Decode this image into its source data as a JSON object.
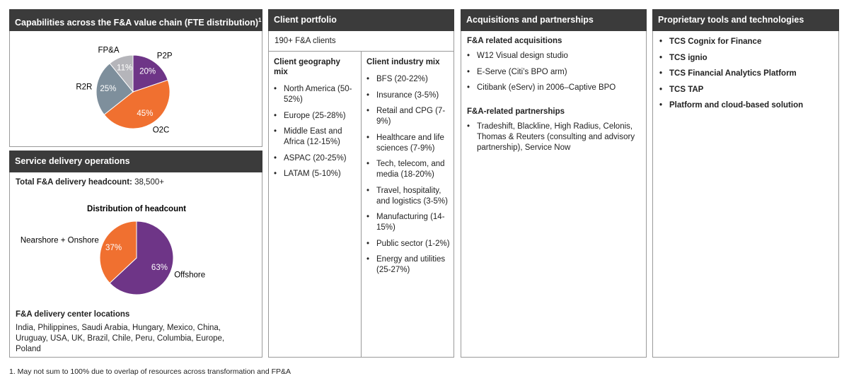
{
  "capabilities": {
    "title": "Capabilities across the F&A value chain (FTE distribution)",
    "title_note": "1",
    "chart": {
      "type": "pie",
      "categories": [
        "P2P",
        "O2C",
        "R2R",
        "FP&A"
      ],
      "values": [
        20,
        45,
        25,
        11
      ],
      "value_labels": [
        "20%",
        "45%",
        "25%",
        "11%"
      ],
      "colors": [
        "#6e3587",
        "#f07030",
        "#7e8f9c",
        "#b5b5ba"
      ]
    }
  },
  "service_delivery": {
    "title": "Service delivery operations",
    "headcount_label": "Total F&A delivery headcount:",
    "headcount": "38,500+",
    "chart": {
      "type": "pie",
      "title": "Distribution of headcount",
      "categories": [
        "Offshore",
        "Nearshore + Onshore"
      ],
      "values": [
        63,
        37
      ],
      "value_labels": [
        "63%",
        "37%"
      ],
      "colors": [
        "#6e3587",
        "#f07030"
      ]
    },
    "locations_title": "F&A delivery center locations",
    "locations": "India, Philippines, Saudi Arabia, Hungary, Mexico, China, Uruguay, USA, UK, Brazil, Chile, Peru, Columbia, Europe, Poland"
  },
  "client_portfolio": {
    "title": "Client portfolio",
    "summary": "190+ F&A clients",
    "geography": {
      "title": "Client geography mix",
      "items": [
        "North America (50-52%)",
        "Europe (25-28%)",
        "Middle East and Africa (12-15%)",
        "ASPAC (20-25%)",
        "LATAM (5-10%)"
      ]
    },
    "industry": {
      "title": "Client industry mix",
      "items": [
        "BFS (20-22%)",
        "Insurance (3-5%)",
        "Retail and CPG (7-9%)",
        "Healthcare and life sciences (7-9%)",
        "Tech, telecom, and media (18-20%)",
        "Travel, hospitality, and logistics (3-5%)",
        "Manufacturing (14-15%)",
        "Public sector (1-2%)",
        "Energy and utilities (25-27%)"
      ]
    }
  },
  "acquisitions": {
    "title": "Acquisitions and partnerships",
    "acquisitions_title": "F&A related acquisitions",
    "acquisitions": [
      "W12 Visual design studio",
      "E-Serve (Citi’s BPO arm)",
      "Citibank (eServ) in 2006–Captive BPO"
    ],
    "partnerships_title": "F&A-related partnerships",
    "partnerships": [
      "Tradeshift, Blackline, High Radius, Celonis, Thomas & Reuters (consulting and advisory partnership), Service Now"
    ]
  },
  "tools": {
    "title": "Proprietary tools and technologies",
    "items": [
      "TCS Cognix for Finance",
      "TCS ignio",
      "TCS Financial Analytics Platform",
      "TCS TAP",
      "Platform and cloud-based solution"
    ]
  },
  "footnote": "1. May not sum to 100% due to overlap of resources across transformation and FP&A"
}
